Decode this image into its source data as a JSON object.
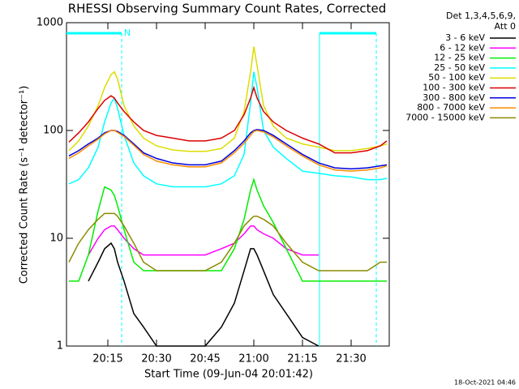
{
  "chart_data": {
    "type": "line",
    "title": "RHESSI Observing Summary Count Rates, Corrected",
    "xlabel": "Start Time (09-Jun-04 20:01:42)",
    "ylabel": "Corrected Count Rate (s⁻¹ detector⁻¹)",
    "legend_title": [
      "Det 1,3,4,5,6,9,",
      "Att 0"
    ],
    "footer": "18-Oct-2021 04:46",
    "log_y": true,
    "legend": "right",
    "x": [
      3,
      6,
      9,
      12,
      14,
      16,
      17,
      18,
      20,
      23,
      26,
      30,
      35,
      40,
      45,
      50,
      54,
      57,
      59,
      60,
      61,
      63,
      66,
      70,
      75,
      80,
      85,
      90,
      95,
      99,
      101
    ],
    "xlim": [
      2.25,
      101.75
    ],
    "xticks": [
      {
        "value": 15,
        "label": "20:15"
      },
      {
        "value": 30,
        "label": "20:30"
      },
      {
        "value": 45,
        "label": "20:45"
      },
      {
        "value": 60,
        "label": "21:00"
      },
      {
        "value": 75,
        "label": "21:15"
      },
      {
        "value": 90,
        "label": "21:30"
      }
    ],
    "ylim": [
      1,
      1000
    ],
    "yticks": [
      1,
      10,
      100,
      1000
    ],
    "annotations": [
      {
        "label": "N",
        "xlim": [
          2.25,
          19.25
        ],
        "color": "#00ffff"
      },
      {
        "xlim": [
          80.25,
          97.75
        ],
        "color": "#00ffff"
      }
    ],
    "series": [
      {
        "name": "3 - 6 keV",
        "color": "#000000",
        "values": [
          null,
          null,
          4,
          6,
          8,
          9,
          8,
          6,
          4,
          2,
          1.5,
          1,
          1,
          1,
          1,
          1.5,
          2.5,
          5,
          8,
          8,
          7,
          5,
          3,
          2,
          1.2,
          1,
          null,
          null,
          null,
          null,
          null
        ]
      },
      {
        "name": "6 - 12 keV",
        "color": "#ff00ff",
        "values": [
          null,
          null,
          7,
          10,
          12,
          13,
          13,
          12,
          10,
          8,
          7,
          7,
          7,
          7,
          7,
          8,
          9,
          11,
          13,
          13,
          12,
          11,
          10,
          8,
          7,
          7,
          null,
          null,
          null,
          null,
          null
        ]
      },
      {
        "name": "12 - 25 keV",
        "color": "#00ee00",
        "values": [
          4,
          4,
          7,
          18,
          30,
          28,
          25,
          20,
          12,
          6,
          5,
          5,
          5,
          5,
          5,
          5,
          8,
          15,
          28,
          35,
          28,
          20,
          14,
          8,
          4,
          4,
          4,
          4,
          4,
          4,
          4
        ]
      },
      {
        "name": "25 - 50 keV",
        "color": "#00ffff",
        "values": [
          32,
          35,
          45,
          70,
          120,
          180,
          200,
          160,
          90,
          50,
          38,
          32,
          30,
          30,
          30,
          32,
          38,
          60,
          180,
          350,
          250,
          100,
          70,
          55,
          42,
          40,
          38,
          37,
          35,
          35,
          36
        ]
      },
      {
        "name": "50 - 100 keV",
        "color": "#dddd00",
        "values": [
          65,
          80,
          110,
          170,
          250,
          330,
          350,
          300,
          170,
          110,
          85,
          72,
          66,
          64,
          64,
          68,
          85,
          150,
          350,
          600,
          400,
          170,
          110,
          85,
          75,
          70,
          65,
          65,
          68,
          72,
          75
        ]
      },
      {
        "name": "100 - 300 keV",
        "color": "#dd0000",
        "values": [
          78,
          95,
          120,
          160,
          190,
          210,
          200,
          180,
          150,
          120,
          100,
          90,
          85,
          80,
          80,
          85,
          100,
          140,
          200,
          250,
          200,
          150,
          120,
          100,
          85,
          75,
          62,
          62,
          65,
          72,
          80
        ]
      },
      {
        "name": "300 - 800 keV",
        "color": "#0000dd",
        "values": [
          58,
          65,
          75,
          85,
          95,
          100,
          100,
          98,
          90,
          75,
          62,
          55,
          50,
          48,
          48,
          52,
          65,
          80,
          95,
          100,
          102,
          100,
          90,
          75,
          60,
          50,
          45,
          44,
          45,
          47,
          48
        ]
      },
      {
        "name": "800 - 7000 keV",
        "color": "#ff8c00",
        "values": [
          55,
          62,
          72,
          83,
          93,
          100,
          100,
          96,
          88,
          73,
          60,
          52,
          48,
          46,
          46,
          50,
          62,
          76,
          90,
          98,
          100,
          97,
          87,
          72,
          58,
          48,
          43,
          42,
          43,
          45,
          47
        ]
      },
      {
        "name": "7000 - 15000 keV",
        "color": "#8b8b00",
        "values": [
          6,
          9,
          12,
          15,
          17,
          17,
          17,
          16,
          13,
          9,
          6,
          5,
          5,
          5,
          5,
          6,
          9,
          13,
          15,
          16,
          16,
          15,
          13,
          9,
          6,
          5,
          5,
          5,
          5,
          6,
          6
        ]
      }
    ]
  }
}
